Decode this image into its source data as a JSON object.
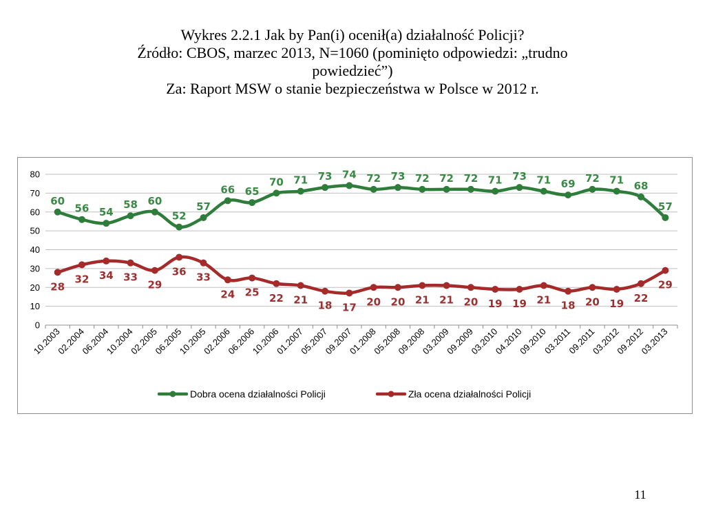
{
  "title": {
    "line1": "Wykres 2.2.1 Jak by Pan(i) ocenił(a) działalność Policji?",
    "line2": "Źródło: CBOS, marzec 2013, N=1060 (pominięto odpowiedzi: „trudno",
    "line3": "powiedzieć”)",
    "line4": "Za: Raport MSW o stanie bezpieczeństwa w Polsce w 2012 r."
  },
  "page_number": "11",
  "chart_data": {
    "type": "line",
    "categories": [
      "10.2003",
      "02.2004",
      "06.2004",
      "10.2004",
      "02.2005",
      "06.2005",
      "10.2005",
      "02.2006",
      "06.2006",
      "10.2006",
      "01.2007",
      "05.2007",
      "09.2007",
      "01.2008",
      "05.2008",
      "09.2008",
      "03.2009",
      "09.2009",
      "03.2010",
      "04.2010",
      "09.2010",
      "03.2011",
      "09.2011",
      "03.2012",
      "09.2012",
      "03.2013"
    ],
    "ylim": [
      0,
      80
    ],
    "yticks": [
      "0",
      "10",
      "20",
      "30",
      "40",
      "50",
      "60",
      "70",
      "80"
    ],
    "grid": "horizontal",
    "legend_position": "bottom",
    "series": [
      {
        "name": "Dobra ocena działalności Policji",
        "color": "#2e7d3a",
        "label_color": "#3a8a45",
        "values": [
          60,
          56,
          54,
          58,
          60,
          52,
          57,
          66,
          65,
          70,
          71,
          73,
          74,
          72,
          73,
          72,
          72,
          72,
          71,
          73,
          71,
          69,
          72,
          71,
          68,
          57
        ]
      },
      {
        "name": "Zła ocena działalności Policji",
        "color": "#a52a2a",
        "label_color": "#9c3030",
        "values": [
          28,
          32,
          34,
          33,
          29,
          36,
          33,
          24,
          25,
          22,
          21,
          18,
          17,
          20,
          20,
          21,
          21,
          20,
          19,
          19,
          21,
          18,
          20,
          19,
          22,
          29
        ]
      }
    ]
  }
}
